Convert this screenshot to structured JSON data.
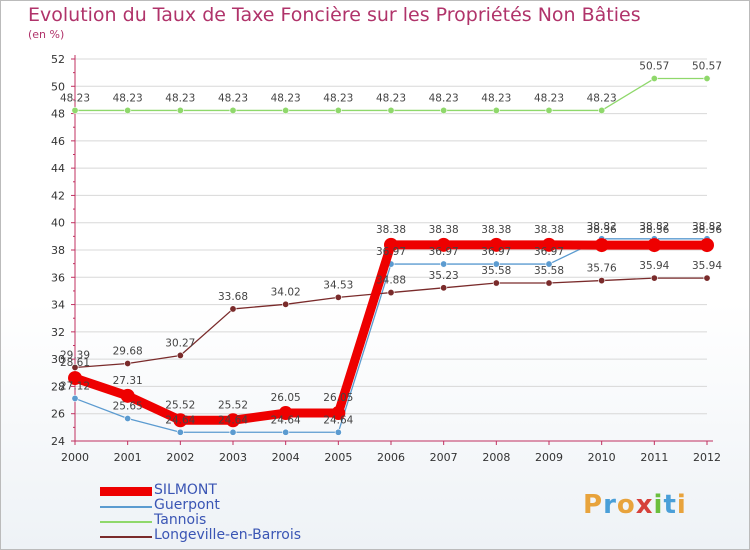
{
  "header": {
    "title": "Evolution du Taux de Taxe Foncière sur les Propriétés Non Bâties",
    "unit": "(en %)"
  },
  "logo": {
    "text": "Proxiti",
    "colors": [
      "#e8a33c",
      "#4a9fd8",
      "#e8a33c",
      "#d6413b",
      "#6bbf3d",
      "#4a9fd8",
      "#e8a33c"
    ]
  },
  "chart_data": {
    "type": "line",
    "title": "Evolution du Taux de Taxe Foncière sur les Propriétés Non Bâties",
    "ylabel": "(en %)",
    "xlabel": "",
    "ylim": [
      24,
      52
    ],
    "yticks": [
      24,
      26,
      28,
      30,
      32,
      34,
      36,
      38,
      40,
      42,
      44,
      46,
      48,
      50,
      52
    ],
    "x": [
      "2000",
      "2001",
      "2002",
      "2003",
      "2004",
      "2005",
      "2006",
      "2007",
      "2008",
      "2009",
      "2010",
      "2011",
      "2012"
    ],
    "legend_position": "bottom-left",
    "series": [
      {
        "name": "Guerpont",
        "color": "#5b9bd0",
        "values": [
          27.12,
          25.65,
          24.64,
          24.64,
          24.64,
          24.64,
          36.97,
          36.97,
          36.97,
          36.97,
          38.82,
          38.82,
          38.82
        ],
        "labels": [
          "27.12",
          "25.65",
          "24.64",
          "24.64",
          "24.64",
          "24.64",
          "36.97",
          "36.97",
          "36.97",
          "36.97",
          "38.82",
          "38.82",
          "38.82"
        ]
      },
      {
        "name": "Tannois",
        "color": "#8fd86b",
        "values": [
          48.23,
          48.23,
          48.23,
          48.23,
          48.23,
          48.23,
          48.23,
          48.23,
          48.23,
          48.23,
          48.23,
          50.57,
          50.57
        ],
        "labels": [
          "48.23",
          "48.23",
          "48.23",
          "48.23",
          "48.23",
          "48.23",
          "48.23",
          "48.23",
          "48.23",
          "48.23",
          "48.23",
          "50.57",
          "50.57"
        ]
      },
      {
        "name": "Longeville-en-Barrois",
        "color": "#7a2b2b",
        "values": [
          29.39,
          29.68,
          30.27,
          33.68,
          34.02,
          34.53,
          34.88,
          35.23,
          35.58,
          35.58,
          35.76,
          35.94,
          35.94
        ],
        "labels": [
          "29.39",
          "29.68",
          "30.27",
          "33.68",
          "34.02",
          "34.53",
          "34.88",
          "35.23",
          "35.58",
          "35.58",
          "35.76",
          "35.94",
          "35.94"
        ]
      },
      {
        "name": "SILMONT",
        "color": "#ee0000",
        "values": [
          28.61,
          27.31,
          25.52,
          25.52,
          26.05,
          26.05,
          38.38,
          38.38,
          38.38,
          38.38,
          38.36,
          38.36,
          38.36
        ],
        "labels": [
          "28.61",
          "27.31",
          "25.52",
          "25.52",
          "26.05",
          "26.05",
          "38.38",
          "38.38",
          "38.38",
          "38.38",
          "38.36",
          "38.36",
          "38.36"
        ]
      }
    ],
    "legend_order": [
      "SILMONT",
      "Guerpont",
      "Tannois",
      "Longeville-en-Barrois"
    ]
  }
}
